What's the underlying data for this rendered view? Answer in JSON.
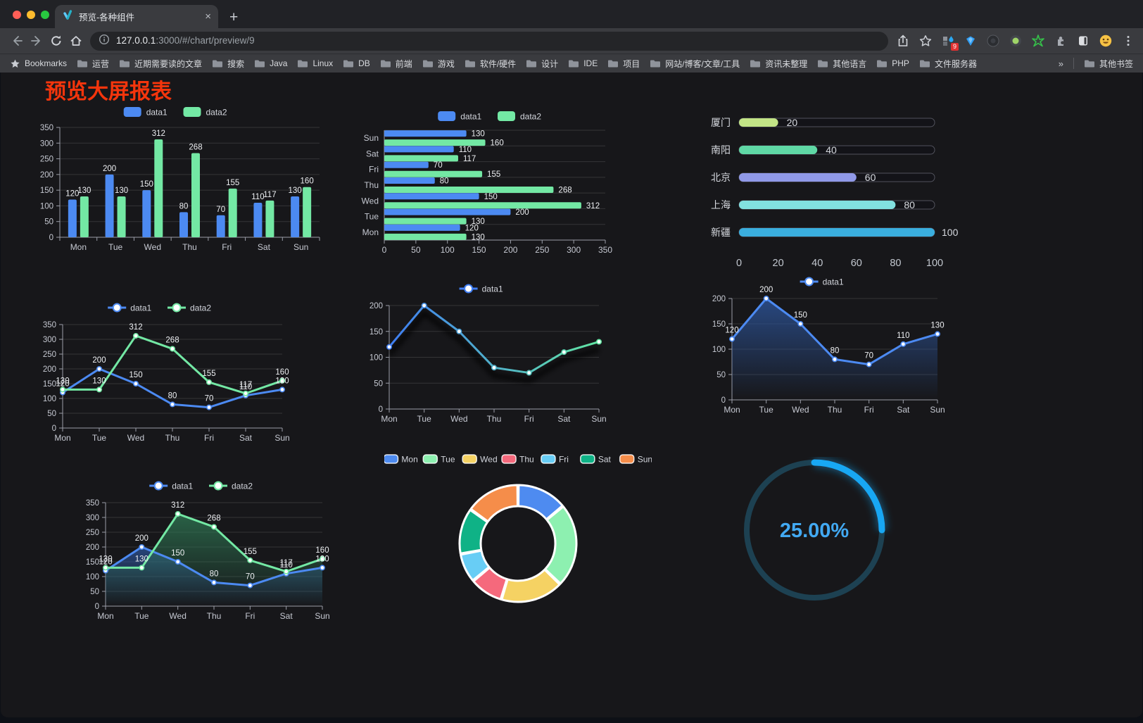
{
  "browser": {
    "tab": {
      "title": "预览-各种组件"
    },
    "url": {
      "host": "127.0.0.1",
      "path": ":3000/#/chart/preview/9"
    },
    "extensions": {
      "badge": "9"
    },
    "bookmarks_label": "Bookmarks",
    "bookmarks": [
      "运营",
      "近期需要读的文章",
      "搜索",
      "Java",
      "Linux",
      "DB",
      "前端",
      "游戏",
      "软件/硬件",
      "设计",
      "IDE",
      "项目",
      "网站/博客/文章/工具",
      "资讯未整理",
      "其他语言",
      "PHP",
      "文件服务器"
    ],
    "overflow_chevron": "»",
    "other_bookmarks": "其他书签"
  },
  "page": {
    "title": "预览大屏报表"
  },
  "theme": {
    "background": "#17171a",
    "axis": "#9b9ea8",
    "tick_text": "#c6c9d2",
    "grid": "rgba(255,255,255,0.13)",
    "value_text": "#eef0f3",
    "legend_text": "#d2d5dc",
    "accent_blue": "#4c8af2",
    "accent_green": "#73e8a4"
  },
  "chart_data": [
    {
      "id": "bar-grouped",
      "type": "bar",
      "categories": [
        "Mon",
        "Tue",
        "Wed",
        "Thu",
        "Fri",
        "Sat",
        "Sun"
      ],
      "series": [
        {
          "name": "data1",
          "color": "#4c8af2",
          "values": [
            120,
            200,
            150,
            80,
            70,
            110,
            130
          ]
        },
        {
          "name": "data2",
          "color": "#73e8a4",
          "values": [
            130,
            130,
            312,
            268,
            155,
            117,
            160
          ]
        }
      ],
      "ylim": [
        0,
        350
      ],
      "ytick_step": 50,
      "legend": "top",
      "grid": true
    },
    {
      "id": "hbar-grouped",
      "type": "hbar",
      "categories": [
        "Mon",
        "Tue",
        "Wed",
        "Thu",
        "Fri",
        "Sat",
        "Sun"
      ],
      "reversed_display": true,
      "series": [
        {
          "name": "data1",
          "color": "#4c8af2",
          "values": [
            120,
            200,
            150,
            80,
            70,
            110,
            130
          ]
        },
        {
          "name": "data2",
          "color": "#73e8a4",
          "values": [
            130,
            130,
            312,
            268,
            155,
            117,
            160
          ]
        }
      ],
      "xlim": [
        0,
        350
      ],
      "xtick_step": 50,
      "legend": "top",
      "grid": true
    },
    {
      "id": "progress-bars",
      "type": "progress",
      "items": [
        {
          "label": "厦门",
          "value": 20,
          "color": "#c3e586"
        },
        {
          "label": "南阳",
          "value": 40,
          "color": "#5fd8a5"
        },
        {
          "label": "北京",
          "value": 60,
          "color": "#9099e8"
        },
        {
          "label": "上海",
          "value": 80,
          "color": "#82e0e0"
        },
        {
          "label": "新疆",
          "value": 100,
          "color": "#3aaede"
        }
      ],
      "max": 100,
      "xticks": [
        0,
        20,
        40,
        60,
        80,
        100
      ]
    },
    {
      "id": "line-two",
      "type": "line",
      "categories": [
        "Mon",
        "Tue",
        "Wed",
        "Thu",
        "Fri",
        "Sat",
        "Sun"
      ],
      "series": [
        {
          "name": "data1",
          "color": "#4c8af2",
          "values": [
            120,
            200,
            150,
            80,
            70,
            110,
            130
          ],
          "labels": true
        },
        {
          "name": "data2",
          "color": "#73e8a4",
          "values": [
            130,
            130,
            312,
            268,
            155,
            117,
            160
          ],
          "labels": true
        }
      ],
      "ylim": [
        0,
        350
      ],
      "ytick_step": 50,
      "legend": "top",
      "grid": true
    },
    {
      "id": "line-gradient",
      "type": "line",
      "categories": [
        "Mon",
        "Tue",
        "Wed",
        "Thu",
        "Fri",
        "Sat",
        "Sun"
      ],
      "series": [
        {
          "name": "data1",
          "gradient": [
            "#3f7df2",
            "#62e6a3"
          ],
          "values": [
            120,
            200,
            150,
            80,
            70,
            110,
            130
          ],
          "labels": false,
          "shadow": true
        }
      ],
      "ylim": [
        0,
        200
      ],
      "ytick_step": 50,
      "legend": "top",
      "grid": true
    },
    {
      "id": "area-single",
      "type": "line",
      "categories": [
        "Mon",
        "Tue",
        "Wed",
        "Thu",
        "Fri",
        "Sat",
        "Sun"
      ],
      "series": [
        {
          "name": "data1",
          "color": "#4c8af2",
          "values": [
            120,
            200,
            150,
            80,
            70,
            110,
            130
          ],
          "labels": true,
          "area": [
            "rgba(45,85,155,0.8)",
            "rgba(45,85,155,0)"
          ]
        }
      ],
      "ylim": [
        0,
        200
      ],
      "ytick_step": 50,
      "legend": "top",
      "grid": true
    },
    {
      "id": "area-two",
      "type": "line",
      "categories": [
        "Mon",
        "Tue",
        "Wed",
        "Thu",
        "Fri",
        "Sat",
        "Sun"
      ],
      "series": [
        {
          "name": "data1",
          "color": "#4c8af2",
          "values": [
            120,
            200,
            150,
            80,
            70,
            110,
            130
          ],
          "labels": true,
          "area": [
            "rgba(45,85,155,0.75)",
            "rgba(45,85,155,0)"
          ]
        },
        {
          "name": "data2",
          "color": "#73e8a4",
          "values": [
            130,
            130,
            312,
            268,
            155,
            117,
            160
          ],
          "labels": true,
          "area": [
            "rgba(47,122,85,0.75)",
            "rgba(47,122,85,0)"
          ]
        }
      ],
      "ylim": [
        0,
        350
      ],
      "ytick_step": 50,
      "legend": "top",
      "grid": true
    },
    {
      "id": "donut",
      "type": "donut",
      "items": [
        {
          "label": "Mon",
          "value": 120,
          "color": "#4e8bf0"
        },
        {
          "label": "Tue",
          "value": 200,
          "color": "#8df0b0"
        },
        {
          "label": "Wed",
          "value": 150,
          "color": "#f5d263"
        },
        {
          "label": "Thu",
          "value": 80,
          "color": "#f5697c"
        },
        {
          "label": "Fri",
          "value": 70,
          "color": "#68cdf5"
        },
        {
          "label": "Sat",
          "value": 110,
          "color": "#0fb286"
        },
        {
          "label": "Sun",
          "value": 130,
          "color": "#f58d4a"
        }
      ],
      "legend": "top"
    },
    {
      "id": "gauge",
      "type": "gauge",
      "value": 25,
      "label": "25.00%",
      "color": "#18a7f3",
      "track": "#1d4152",
      "text_color": "#42a9f2"
    }
  ]
}
